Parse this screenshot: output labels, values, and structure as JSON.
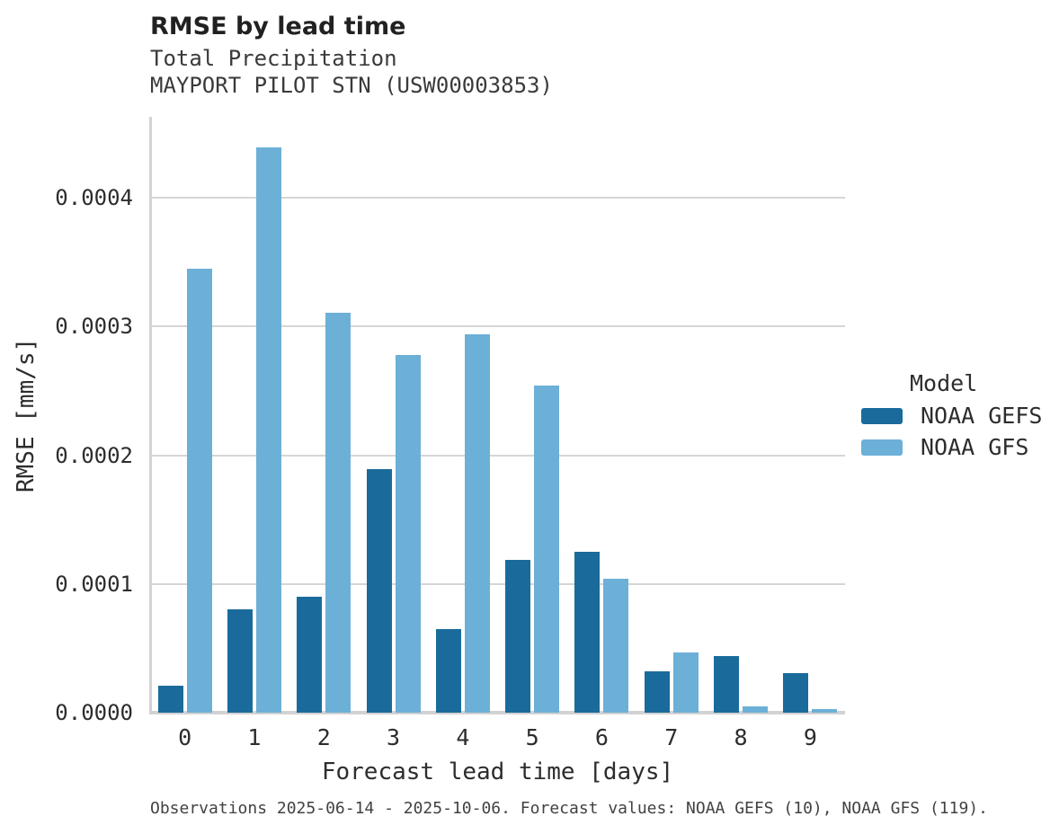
{
  "header": {
    "title": "RMSE by lead time",
    "subtitle": "Total Precipitation",
    "station": "MAYPORT PILOT STN (USW00003853)"
  },
  "chart_data": {
    "type": "bar",
    "title": "RMSE by lead time",
    "subtitle": "Total Precipitation",
    "station": "MAYPORT PILOT STN (USW00003853)",
    "xlabel": "Forecast lead time [days]",
    "ylabel": "RMSE [mm/s]",
    "categories": [
      "0",
      "1",
      "2",
      "3",
      "4",
      "5",
      "6",
      "7",
      "8",
      "9"
    ],
    "series": [
      {
        "name": "NOAA GEFS",
        "color": "#1A6B9B",
        "values": [
          2.1e-05,
          8e-05,
          9e-05,
          0.000189,
          6.5e-05,
          0.000119,
          0.000125,
          3.2e-05,
          4.4e-05,
          3.1e-05
        ]
      },
      {
        "name": "NOAA GFS",
        "color": "#6CB0D8",
        "values": [
          0.000345,
          0.000439,
          0.000311,
          0.000278,
          0.000294,
          0.000254,
          0.000104,
          4.7e-05,
          5e-06,
          3e-06
        ]
      }
    ],
    "ylim": [
      0,
      0.000463
    ],
    "yticks": [
      {
        "value": 0.0,
        "label": "0.0000"
      },
      {
        "value": 0.0001,
        "label": "0.0001"
      },
      {
        "value": 0.0002,
        "label": "0.0002"
      },
      {
        "value": 0.0003,
        "label": "0.0003"
      },
      {
        "value": 0.0004,
        "label": "0.0004"
      }
    ],
    "grid": "horizontal",
    "legend_position": "right"
  },
  "legend": {
    "title": "Model",
    "entries": [
      {
        "label": "NOAA GEFS",
        "color": "#1A6B9B"
      },
      {
        "label": "NOAA GFS",
        "color": "#6CB0D8"
      }
    ]
  },
  "caption": "Observations 2025-06-14 - 2025-10-06. Forecast values: NOAA GEFS (10), NOAA GFS (119).",
  "colors": {
    "background": "#ffffff",
    "gridline": "#d6d6d6",
    "axis_spine": "#d2d2d2",
    "title_text": "#212121",
    "body_text": "#2d2d2d",
    "caption_text": "#424242"
  }
}
